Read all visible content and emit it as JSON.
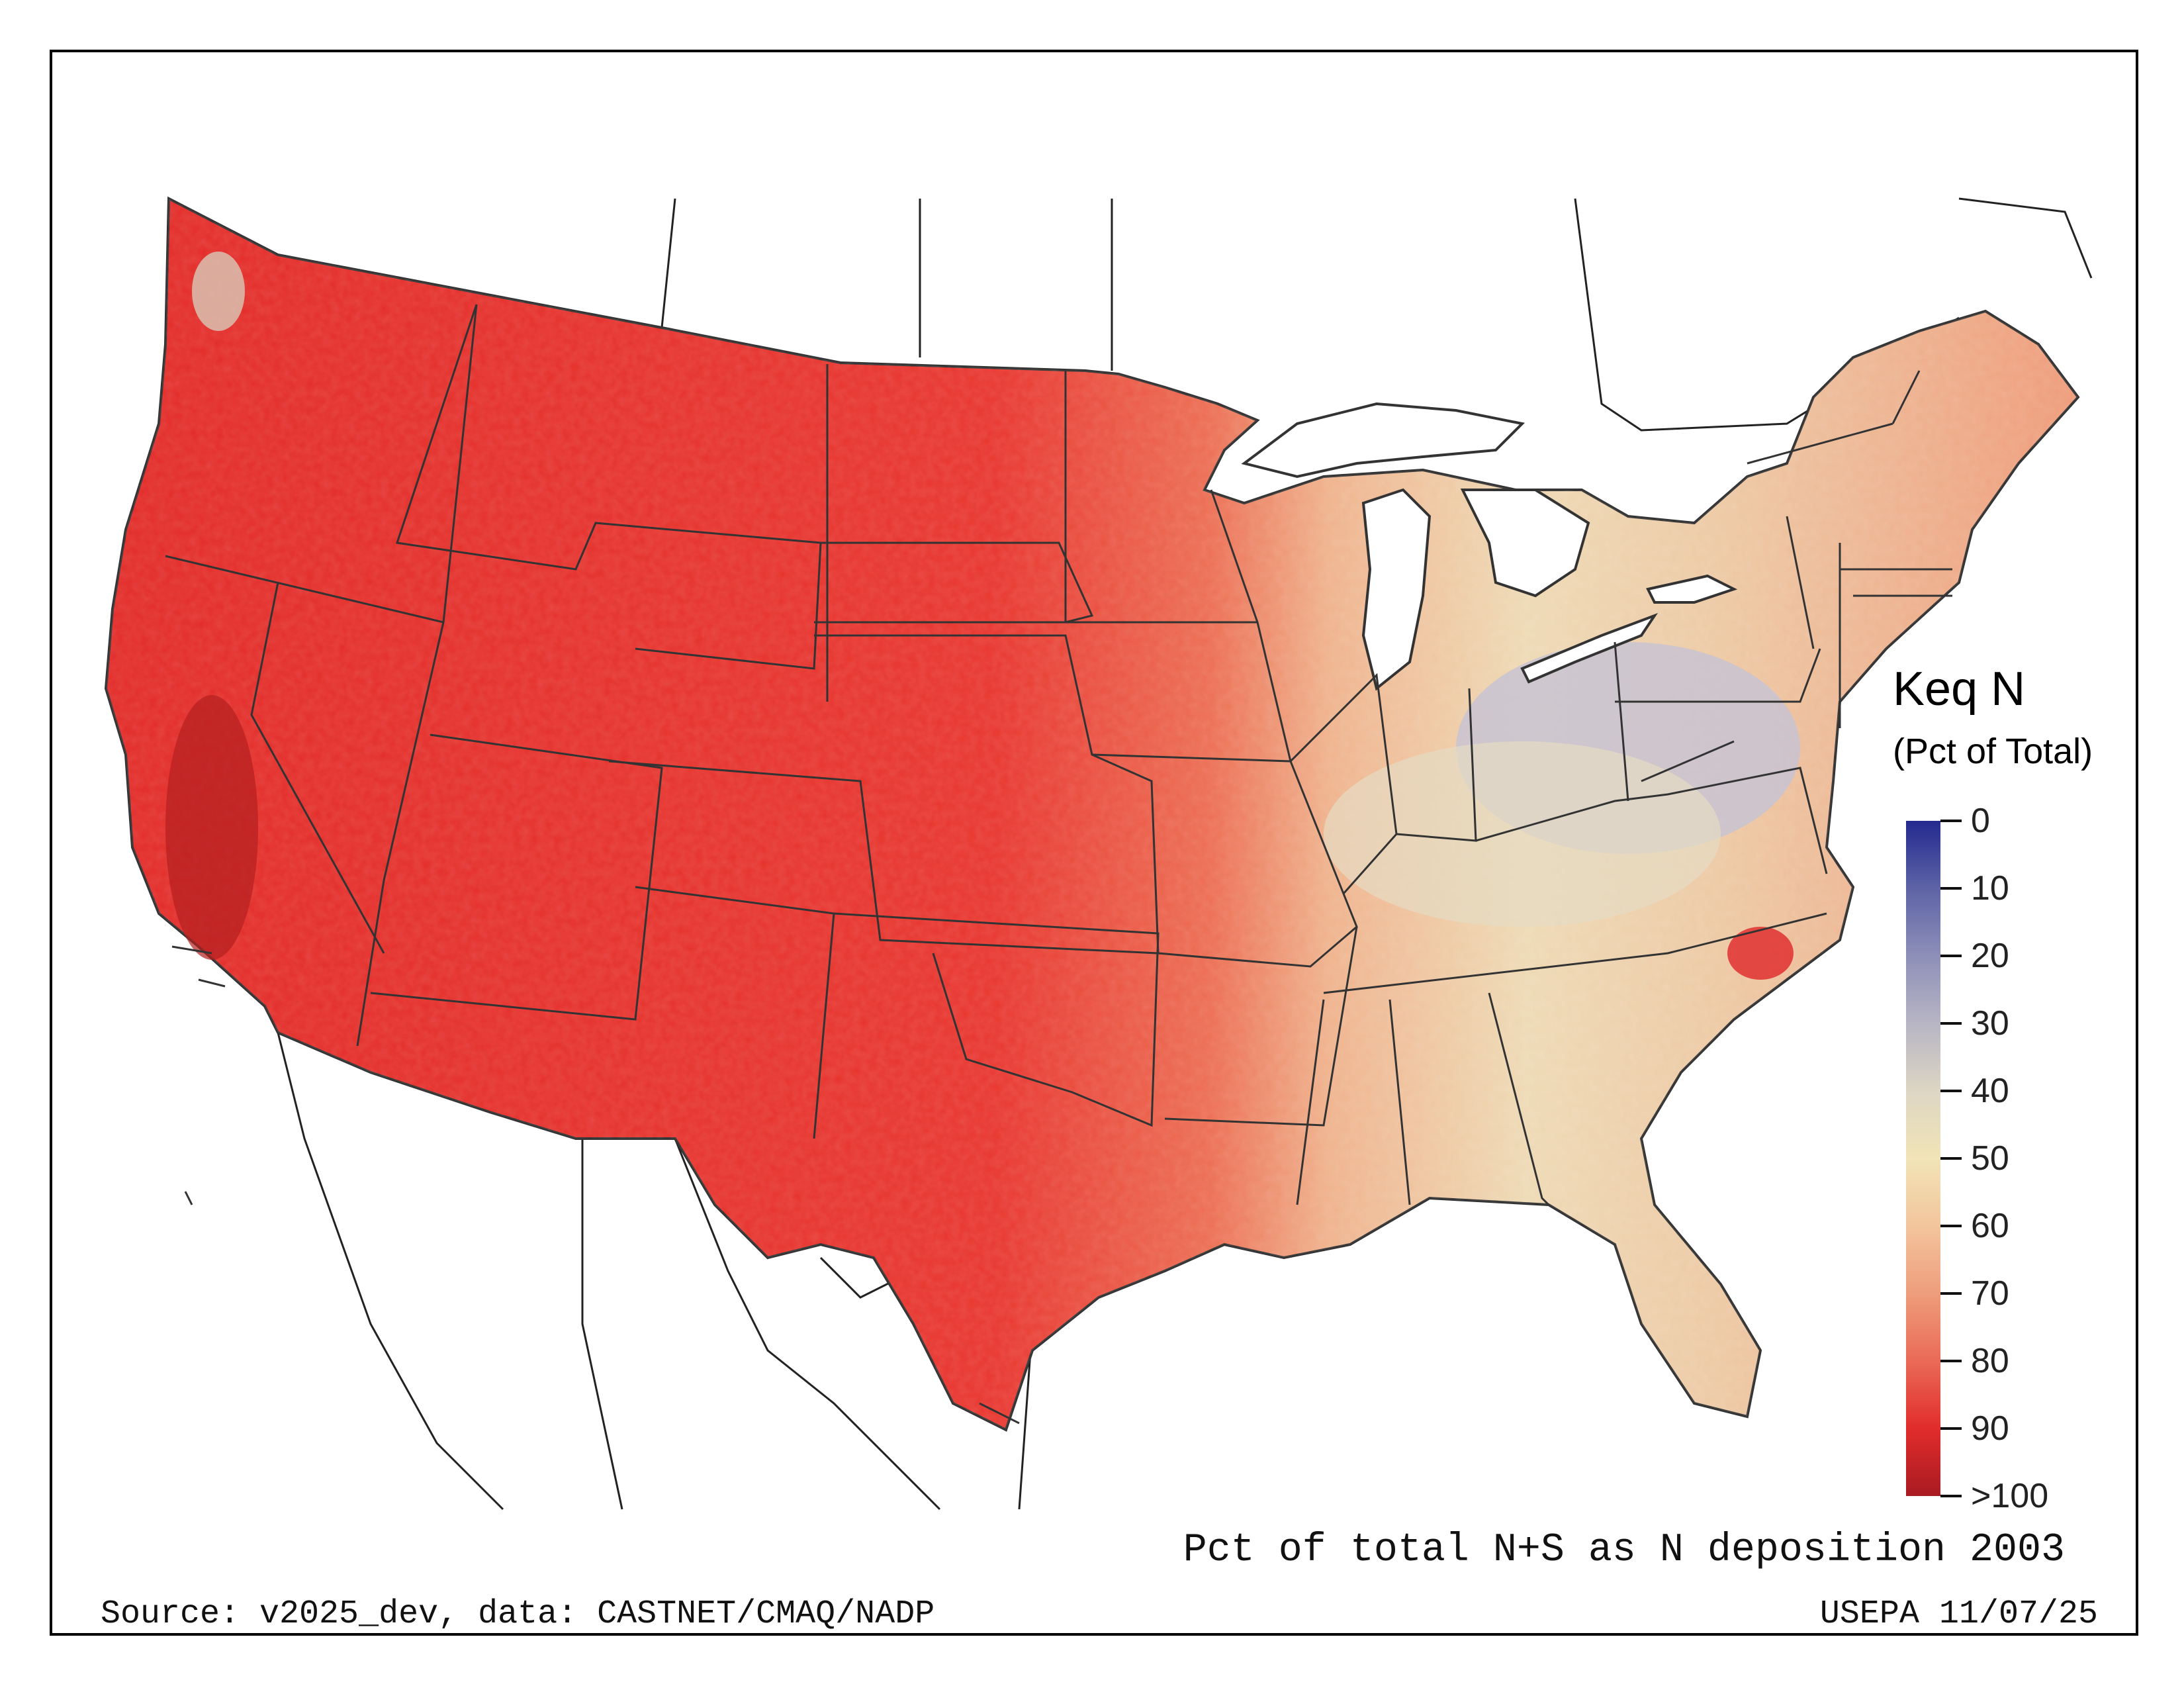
{
  "map": {
    "title": "Pct of total N+S as N deposition 2003",
    "source": "Source: v2025_dev, data: CASTNET/CMAQ/NADP",
    "stamp": "USEPA 11/07/25",
    "legend": {
      "title": "Keq N",
      "subtitle": "(Pct of Total)",
      "ticks": [
        "0",
        "10",
        "20",
        "30",
        "40",
        "50",
        "60",
        "70",
        "80",
        "90",
        ">100"
      ],
      "colors": [
        "#232a8f",
        "#5e63a6",
        "#8d8fb8",
        "#b7b5c4",
        "#ddd6c4",
        "#f1e4b6",
        "#f3c59d",
        "#ee9d7c",
        "#ea6a56",
        "#e22c2c",
        "#a81b22"
      ]
    },
    "colors": {
      "west_fill": "#e8312d",
      "plains_fill": "#ea4a3a",
      "east_fill": "#f0a27f",
      "ohio_valley_fill": "#e8dfc2",
      "ohio_core_fill": "#c9c4cf",
      "southeast_fill": "#f0b28e",
      "northeast_fill": "#ee9a78",
      "border_color": "#333333"
    }
  }
}
